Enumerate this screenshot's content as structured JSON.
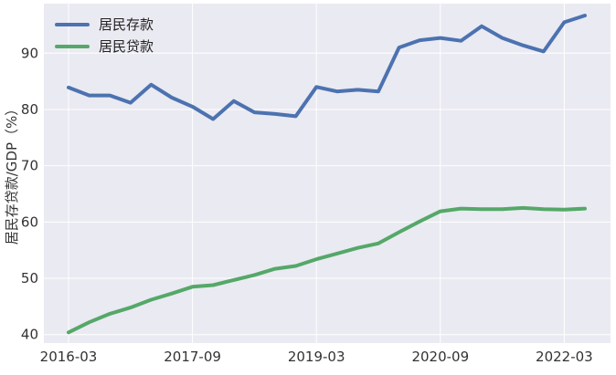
{
  "chart_data": {
    "type": "line",
    "title": "",
    "xlabel": "",
    "ylabel": "居民存贷款/GDP（%）",
    "x": [
      "2016-03",
      "2016-06",
      "2016-09",
      "2016-12",
      "2017-03",
      "2017-06",
      "2017-09",
      "2017-12",
      "2018-03",
      "2018-06",
      "2018-09",
      "2018-12",
      "2019-03",
      "2019-06",
      "2019-09",
      "2019-12",
      "2020-03",
      "2020-06",
      "2020-09",
      "2020-12",
      "2021-03",
      "2021-06",
      "2021-09",
      "2021-12",
      "2022-03",
      "2022-06"
    ],
    "xticks": [
      "2016-03",
      "2017-09",
      "2019-03",
      "2020-09",
      "2022-03"
    ],
    "ylim": [
      38.5,
      98.8
    ],
    "yticks": [
      40,
      50,
      60,
      70,
      80,
      90
    ],
    "grid": true,
    "legend_position": "top-left",
    "series": [
      {
        "name": "居民存款",
        "color": "#4c72b0",
        "values": [
          83.9,
          82.5,
          82.5,
          81.2,
          84.4,
          82.1,
          80.5,
          78.3,
          81.5,
          79.5,
          79.2,
          78.8,
          84.0,
          83.2,
          83.5,
          83.2,
          91.0,
          92.3,
          92.7,
          92.2,
          94.8,
          92.7,
          91.4,
          90.3,
          95.5,
          96.7
        ]
      },
      {
        "name": "居民贷款",
        "color": "#55a868",
        "values": [
          40.4,
          42.2,
          43.7,
          44.8,
          46.2,
          47.3,
          48.5,
          48.8,
          49.7,
          50.6,
          51.7,
          52.2,
          53.4,
          54.4,
          55.4,
          56.2,
          58.2,
          60.1,
          61.9,
          62.4,
          62.3,
          62.3,
          62.5,
          62.3,
          62.2,
          62.4
        ]
      }
    ]
  }
}
